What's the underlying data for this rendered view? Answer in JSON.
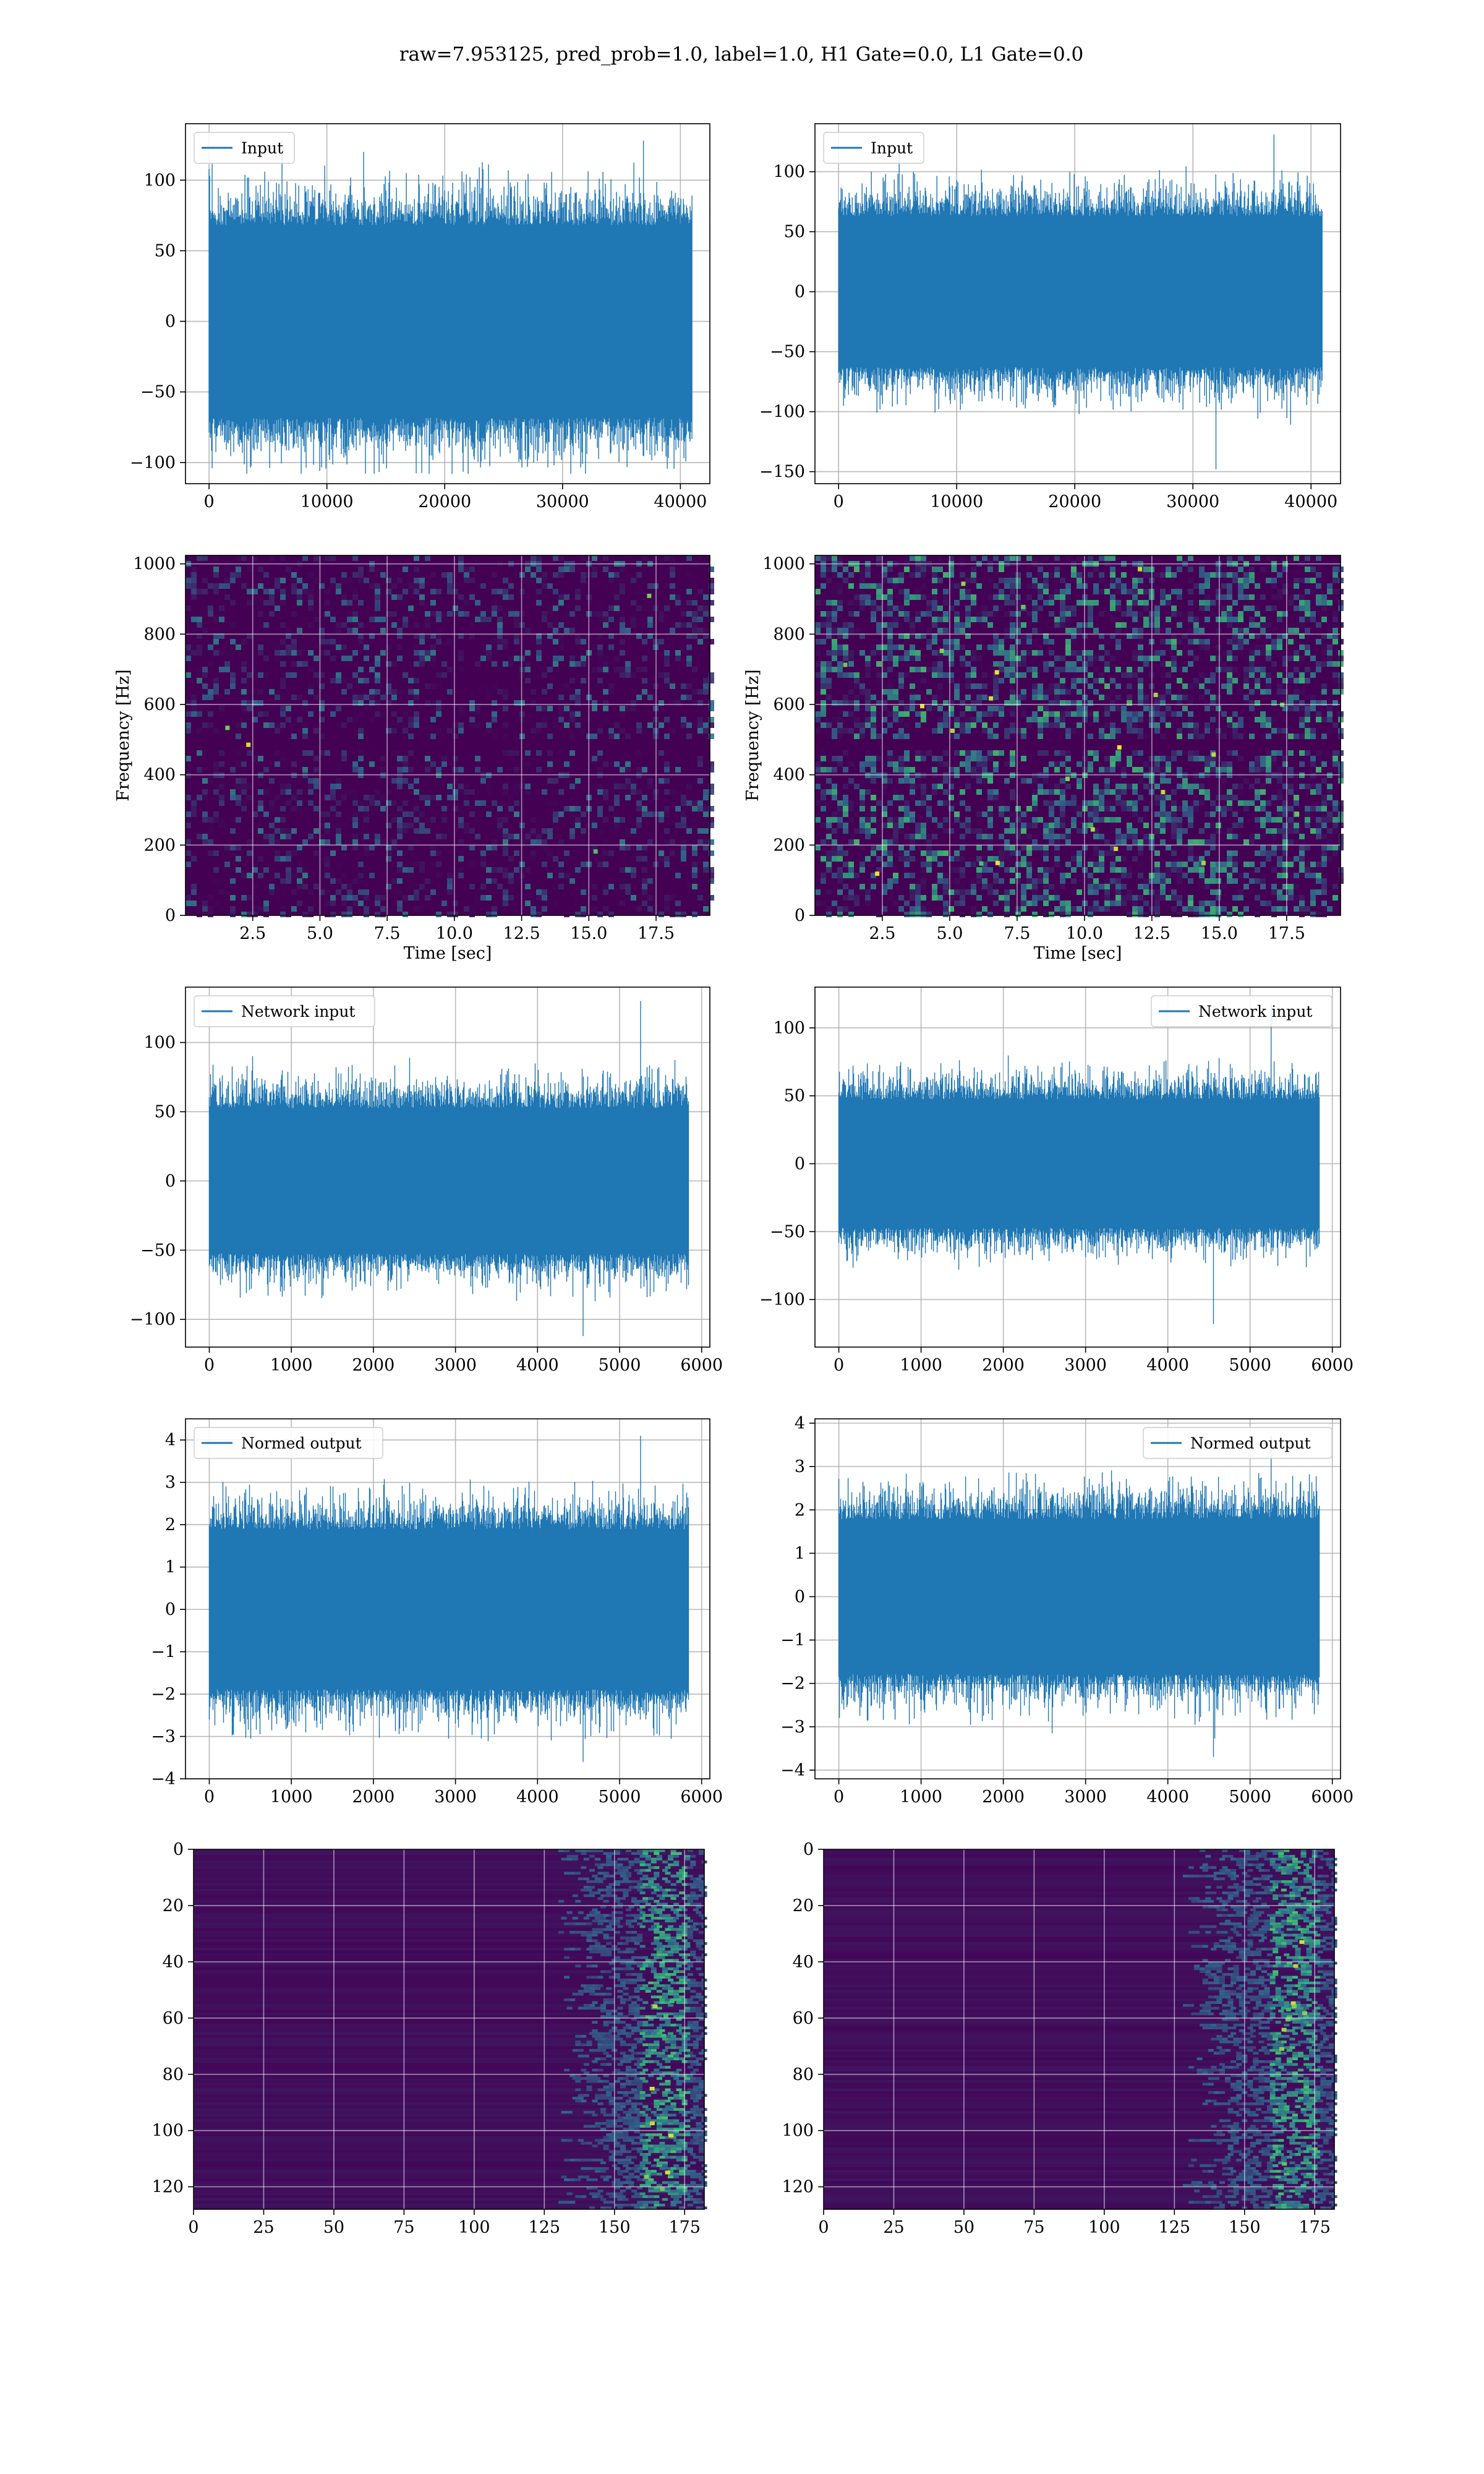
{
  "suptitle": "raw=7.953125, pred_prob=1.0, label=1.0, H1 Gate=0.0, L1 Gate=0.0",
  "colors": {
    "line": "#1f77b4",
    "grid": "#b0b0b0",
    "heatmap_bg": "#440154",
    "heatmap_mid": "#31688e",
    "heatmap_hi": "#35b779",
    "heatmap_peak": "#fde725"
  },
  "chart_data": [
    {
      "id": "h1-input",
      "type": "line",
      "legend": [
        "Input"
      ],
      "legend_loc": "upper left",
      "xlim": [
        -2000,
        42500
      ],
      "ylim": [
        -115,
        140
      ],
      "xticks": [
        0,
        10000,
        20000,
        30000,
        40000
      ],
      "xtick_labels": [
        "0",
        "10000",
        "20000",
        "30000",
        "40000"
      ],
      "yticks": [
        -100,
        -50,
        0,
        50,
        100
      ],
      "ytick_labels": [
        "−100",
        "−50",
        "0",
        "50",
        "100"
      ],
      "series": [
        {
          "name": "Input",
          "n_samples": 40960,
          "core_band": [
            -65,
            65
          ],
          "max": 128,
          "min": -108
        }
      ],
      "grid": true
    },
    {
      "id": "l1-input",
      "type": "line",
      "legend": [
        "Input"
      ],
      "legend_loc": "upper left",
      "xlim": [
        -2000,
        42500
      ],
      "ylim": [
        -160,
        140
      ],
      "xticks": [
        0,
        10000,
        20000,
        30000,
        40000
      ],
      "xtick_labels": [
        "0",
        "10000",
        "20000",
        "30000",
        "40000"
      ],
      "yticks": [
        -150,
        -100,
        -50,
        0,
        50,
        100
      ],
      "ytick_labels": [
        "−150",
        "−100",
        "−50",
        "0",
        "50",
        "100"
      ],
      "series": [
        {
          "name": "Input",
          "n_samples": 40960,
          "core_band": [
            -60,
            60
          ],
          "max": 131,
          "min": -148
        }
      ],
      "grid": true
    },
    {
      "id": "h1-spectrogram",
      "type": "heatmap",
      "xlabel": "Time [sec]",
      "ylabel": "Frequency [Hz]",
      "xlim": [
        0,
        19.5
      ],
      "ylim": [
        0,
        1024
      ],
      "xticks": [
        2.5,
        5.0,
        7.5,
        10.0,
        12.5,
        15.0,
        17.5
      ],
      "xtick_labels": [
        "2.5",
        "5.0",
        "7.5",
        "10.0",
        "12.5",
        "15.0",
        "17.5"
      ],
      "yticks": [
        0,
        200,
        400,
        600,
        800,
        1000
      ],
      "ytick_labels": [
        "0",
        "200",
        "400",
        "600",
        "800",
        "1000"
      ],
      "intensity": "low",
      "dark_band_hz": 490,
      "grid": true
    },
    {
      "id": "l1-spectrogram",
      "type": "heatmap",
      "xlabel": "Time [sec]",
      "ylabel": "Frequency [Hz]",
      "xlim": [
        0,
        19.5
      ],
      "ylim": [
        0,
        1024
      ],
      "xticks": [
        2.5,
        5.0,
        7.5,
        10.0,
        12.5,
        15.0,
        17.5
      ],
      "xtick_labels": [
        "2.5",
        "5.0",
        "7.5",
        "10.0",
        "12.5",
        "15.0",
        "17.5"
      ],
      "yticks": [
        0,
        200,
        400,
        600,
        800,
        1000
      ],
      "ytick_labels": [
        "0",
        "200",
        "400",
        "600",
        "800",
        "1000"
      ],
      "intensity": "high",
      "dark_band_hz": 490,
      "grid": true
    },
    {
      "id": "h1-network-input",
      "type": "line",
      "legend": [
        "Network input"
      ],
      "legend_loc": "upper left",
      "xlim": [
        -290,
        6100
      ],
      "ylim": [
        -120,
        140
      ],
      "xticks": [
        0,
        1000,
        2000,
        3000,
        4000,
        5000,
        6000
      ],
      "xtick_labels": [
        "0",
        "1000",
        "2000",
        "3000",
        "4000",
        "5000",
        "6000"
      ],
      "yticks": [
        -100,
        -50,
        0,
        50,
        100
      ],
      "ytick_labels": [
        "−100",
        "−50",
        "0",
        "50",
        "100"
      ],
      "series": [
        {
          "name": "Network input",
          "n_samples": 5840,
          "core_band": [
            -50,
            50
          ],
          "max": 130,
          "min": -112
        }
      ],
      "grid": true
    },
    {
      "id": "l1-network-input",
      "type": "line",
      "legend": [
        "Network input"
      ],
      "legend_loc": "upper right",
      "xlim": [
        -290,
        6100
      ],
      "ylim": [
        -135,
        130
      ],
      "xticks": [
        0,
        1000,
        2000,
        3000,
        4000,
        5000,
        6000
      ],
      "xtick_labels": [
        "0",
        "1000",
        "2000",
        "3000",
        "4000",
        "5000",
        "6000"
      ],
      "yticks": [
        -100,
        -50,
        0,
        50,
        100
      ],
      "ytick_labels": [
        "−100",
        "−50",
        "0",
        "50",
        "100"
      ],
      "series": [
        {
          "name": "Network input",
          "n_samples": 5840,
          "core_band": [
            -45,
            45
          ],
          "max": 118,
          "min": -118
        }
      ],
      "grid": true
    },
    {
      "id": "h1-normed-output",
      "type": "line",
      "legend": [
        "Normed output"
      ],
      "legend_loc": "upper left",
      "xlim": [
        -290,
        6100
      ],
      "ylim": [
        -4,
        4.5
      ],
      "xticks": [
        0,
        1000,
        2000,
        3000,
        4000,
        5000,
        6000
      ],
      "xtick_labels": [
        "0",
        "1000",
        "2000",
        "3000",
        "4000",
        "5000",
        "6000"
      ],
      "yticks": [
        -4,
        -3,
        -2,
        -1,
        0,
        1,
        2,
        3,
        4
      ],
      "ytick_labels": [
        "−4",
        "−3",
        "−2",
        "−1",
        "0",
        "1",
        "2",
        "3",
        "4"
      ],
      "series": [
        {
          "name": "Normed output",
          "n_samples": 5840,
          "core_band": [
            -1.8,
            1.8
          ],
          "max": 4.1,
          "min": -3.6
        }
      ],
      "grid": true
    },
    {
      "id": "l1-normed-output",
      "type": "line",
      "legend": [
        "Normed output"
      ],
      "legend_loc": "upper right",
      "xlim": [
        -290,
        6100
      ],
      "ylim": [
        -4.2,
        4.1
      ],
      "xticks": [
        0,
        1000,
        2000,
        3000,
        4000,
        5000,
        6000
      ],
      "xtick_labels": [
        "0",
        "1000",
        "2000",
        "3000",
        "4000",
        "5000",
        "6000"
      ],
      "yticks": [
        -4,
        -3,
        -2,
        -1,
        0,
        1,
        2,
        3,
        4
      ],
      "ytick_labels": [
        "−4",
        "−3",
        "−2",
        "−1",
        "0",
        "1",
        "2",
        "3",
        "4"
      ],
      "series": [
        {
          "name": "Normed output",
          "n_samples": 5840,
          "core_band": [
            -1.7,
            1.7
          ],
          "max": 3.7,
          "min": -3.7
        }
      ],
      "grid": true
    },
    {
      "id": "h1-feature-map",
      "type": "heatmap",
      "xlim": [
        0,
        182
      ],
      "ylim": [
        128,
        0
      ],
      "xticks": [
        0,
        25,
        50,
        75,
        100,
        125,
        150,
        175
      ],
      "xtick_labels": [
        "0",
        "25",
        "50",
        "75",
        "100",
        "125",
        "150",
        "175"
      ],
      "yticks": [
        0,
        20,
        40,
        60,
        80,
        100,
        120
      ],
      "ytick_labels": [
        "0",
        "20",
        "40",
        "60",
        "80",
        "100",
        "120"
      ],
      "active_columns": [
        150,
        182
      ],
      "grid": true
    },
    {
      "id": "l1-feature-map",
      "type": "heatmap",
      "xlim": [
        0,
        182
      ],
      "ylim": [
        128,
        0
      ],
      "xticks": [
        0,
        25,
        50,
        75,
        100,
        125,
        150,
        175
      ],
      "xtick_labels": [
        "0",
        "25",
        "50",
        "75",
        "100",
        "125",
        "150",
        "175"
      ],
      "yticks": [
        0,
        20,
        40,
        60,
        80,
        100,
        120
      ],
      "ytick_labels": [
        "0",
        "20",
        "40",
        "60",
        "80",
        "100",
        "120"
      ],
      "active_columns": [
        148,
        182
      ],
      "grid": true
    }
  ]
}
